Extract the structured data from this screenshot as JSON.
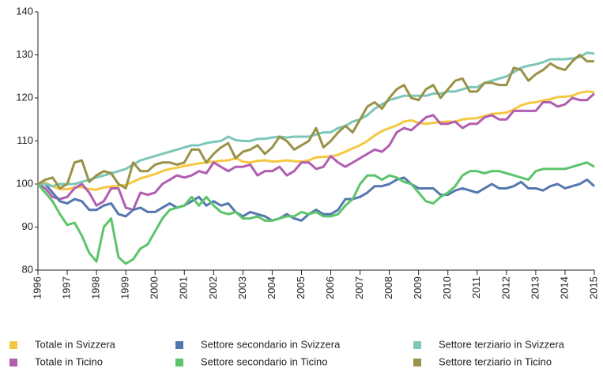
{
  "chart_data": {
    "type": "line",
    "x": [
      1996,
      1996.25,
      1996.5,
      1996.75,
      1997,
      1997.25,
      1997.5,
      1997.75,
      1998,
      1998.25,
      1998.5,
      1998.75,
      1999,
      1999.25,
      1999.5,
      1999.75,
      2000,
      2000.25,
      2000.5,
      2000.75,
      2001,
      2001.25,
      2001.5,
      2001.75,
      2002,
      2002.25,
      2002.5,
      2002.75,
      2003,
      2003.25,
      2003.5,
      2003.75,
      2004,
      2004.25,
      2004.5,
      2004.75,
      2005,
      2005.25,
      2005.5,
      2005.75,
      2006,
      2006.25,
      2006.5,
      2006.75,
      2007,
      2007.25,
      2007.5,
      2007.75,
      2008,
      2008.25,
      2008.5,
      2008.75,
      2009,
      2009.25,
      2009.5,
      2009.75,
      2010,
      2010.25,
      2010.5,
      2010.75,
      2011,
      2011.25,
      2011.5,
      2011.75,
      2012,
      2012.25,
      2012.5,
      2012.75,
      2013,
      2013.25,
      2013.5,
      2013.75,
      2014,
      2014.25,
      2014.5,
      2014.75,
      2015
    ],
    "series": [
      {
        "name": "Totale in Svizzera",
        "color": "#f5c842",
        "values": [
          100,
          100.3,
          99.5,
          98.8,
          98.8,
          99.2,
          99.3,
          98.8,
          98.7,
          99.2,
          99.4,
          99.6,
          99.8,
          100.5,
          101.3,
          101.8,
          102.3,
          103,
          103.5,
          103.8,
          104.2,
          104.5,
          104.8,
          105,
          105.2,
          105.4,
          105.5,
          106,
          105.2,
          105,
          105.4,
          105.5,
          105.2,
          105.3,
          105.5,
          105.3,
          105.2,
          105.5,
          106.2,
          106.3,
          106.4,
          106.8,
          107.5,
          108.3,
          109,
          110,
          111.3,
          112.3,
          113,
          113.6,
          114.5,
          114.8,
          114.2,
          114,
          114.2,
          114.4,
          114.5,
          114.5,
          115,
          115.2,
          115.3,
          115.8,
          116.3,
          116.4,
          116.6,
          117.3,
          118.3,
          118.8,
          119,
          119.4,
          119.7,
          120.2,
          120.3,
          120.5,
          121.2,
          121.5,
          121.3
        ]
      },
      {
        "name": "Totale in Ticino",
        "color": "#b05fb0",
        "values": [
          100,
          99,
          97,
          96.5,
          97,
          99,
          100,
          98,
          95,
          96,
          99,
          99,
          94.5,
          94,
          98,
          97.5,
          98,
          100,
          101,
          102,
          101.5,
          102,
          103,
          102.5,
          105,
          104,
          103,
          104,
          104,
          104.5,
          102,
          103,
          103,
          104,
          102,
          103,
          105,
          105,
          103.5,
          104,
          106.5,
          105,
          104,
          105,
          106,
          107,
          108,
          107.5,
          109,
          112,
          113,
          112.5,
          114,
          115.5,
          116,
          114,
          114,
          114.5,
          113,
          114,
          114,
          115.5,
          116,
          115,
          115,
          117,
          117,
          117,
          117,
          119,
          119,
          118,
          118.5,
          120,
          119.5,
          119.5,
          121
        ]
      },
      {
        "name": "Settore secondario in Svizzera",
        "color": "#5577b0",
        "values": [
          100,
          100,
          98,
          96,
          95.5,
          96.5,
          96,
          94,
          94,
          95,
          95.5,
          93,
          92.5,
          94,
          94.5,
          93.5,
          93.5,
          94.5,
          95.5,
          94.5,
          95,
          96,
          97,
          95,
          96,
          95,
          95.5,
          93.5,
          92.5,
          93.5,
          93,
          92.5,
          91.5,
          92,
          93,
          92,
          91.5,
          93,
          94,
          93,
          93,
          94,
          96.5,
          96.5,
          97,
          98,
          99.5,
          99.5,
          100,
          101,
          101.5,
          100,
          99,
          99,
          99,
          97.5,
          97.5,
          98.5,
          99,
          98.5,
          98,
          99,
          100,
          99,
          99,
          99.5,
          100.5,
          99,
          99,
          98.5,
          99.5,
          100,
          99,
          99.5,
          100,
          101,
          99.5
        ]
      },
      {
        "name": "Settore secondario in Ticino",
        "color": "#5cc46a",
        "values": [
          100,
          98,
          96,
          93,
          90.5,
          91,
          88,
          84,
          82,
          90,
          92,
          83,
          81.5,
          82.5,
          85,
          86,
          89,
          92,
          94,
          94.5,
          95,
          97,
          95,
          97,
          95,
          93.5,
          93,
          93.5,
          92,
          92,
          92.5,
          91.5,
          91.5,
          92,
          92.5,
          92.5,
          93.5,
          93,
          93.5,
          92.5,
          92.5,
          93,
          95,
          96.5,
          100,
          102,
          102,
          101,
          102,
          101.5,
          100.5,
          100,
          98,
          96,
          95.5,
          97,
          98,
          99.5,
          102,
          103,
          103,
          102.5,
          103,
          103,
          102.5,
          102,
          101.5,
          101,
          103,
          103.5,
          103.5,
          103.5,
          103.5,
          104,
          104.5,
          105,
          104
        ]
      },
      {
        "name": "Settore terziario in Svizzera",
        "color": "#7cc7b8",
        "values": [
          100,
          100,
          99.5,
          100,
          100,
          100,
          100.5,
          101,
          101.5,
          102,
          102.5,
          103,
          103.5,
          104.5,
          105.5,
          106,
          106.5,
          107,
          107.5,
          108,
          108.5,
          109,
          109,
          109.5,
          109.8,
          110,
          111,
          110.2,
          110,
          110,
          110.5,
          110.5,
          110.8,
          111,
          110.8,
          111,
          111,
          111,
          111.5,
          112,
          112,
          113,
          113.5,
          114.5,
          115,
          116,
          117.5,
          118.5,
          119.5,
          120,
          120.5,
          120.5,
          120.5,
          120.5,
          121,
          121,
          121.5,
          121.5,
          122,
          122.5,
          122.5,
          123.5,
          124,
          124.5,
          125,
          126,
          127,
          127.5,
          127.8,
          128.3,
          129,
          129,
          129,
          129.2,
          129.5,
          130.5,
          130.3
        ]
      },
      {
        "name": "Settore terziario in Ticino",
        "color": "#9a9248",
        "values": [
          100,
          101,
          101.5,
          99,
          100,
          105,
          105.5,
          100.5,
          102,
          103,
          102.5,
          100,
          99,
          105,
          103,
          103,
          104.5,
          105,
          105,
          104.5,
          105,
          108,
          108,
          105,
          107,
          108.5,
          109.5,
          106,
          107.5,
          108,
          109,
          107,
          108.5,
          111,
          110,
          108,
          109,
          110,
          113,
          108.5,
          110,
          112,
          113.5,
          112,
          115,
          118,
          119,
          117.5,
          120,
          122,
          123,
          120,
          119.5,
          122,
          123,
          120,
          122,
          124,
          124.5,
          121.5,
          121.5,
          123.5,
          123.5,
          123,
          123,
          127,
          126.5,
          124,
          125.5,
          126.5,
          128,
          127,
          126.5,
          128.5,
          130,
          128.5,
          128.5
        ]
      }
    ],
    "xlim": [
      1996,
      2015
    ],
    "xticks": [
      1996,
      1997,
      1998,
      1999,
      2000,
      2001,
      2002,
      2003,
      2004,
      2005,
      2006,
      2007,
      2008,
      2009,
      2010,
      2011,
      2012,
      2013,
      2014,
      2015
    ],
    "ylim": [
      80,
      140
    ],
    "yticks": [
      80,
      90,
      100,
      110,
      120,
      130,
      140
    ],
    "grid": false
  }
}
